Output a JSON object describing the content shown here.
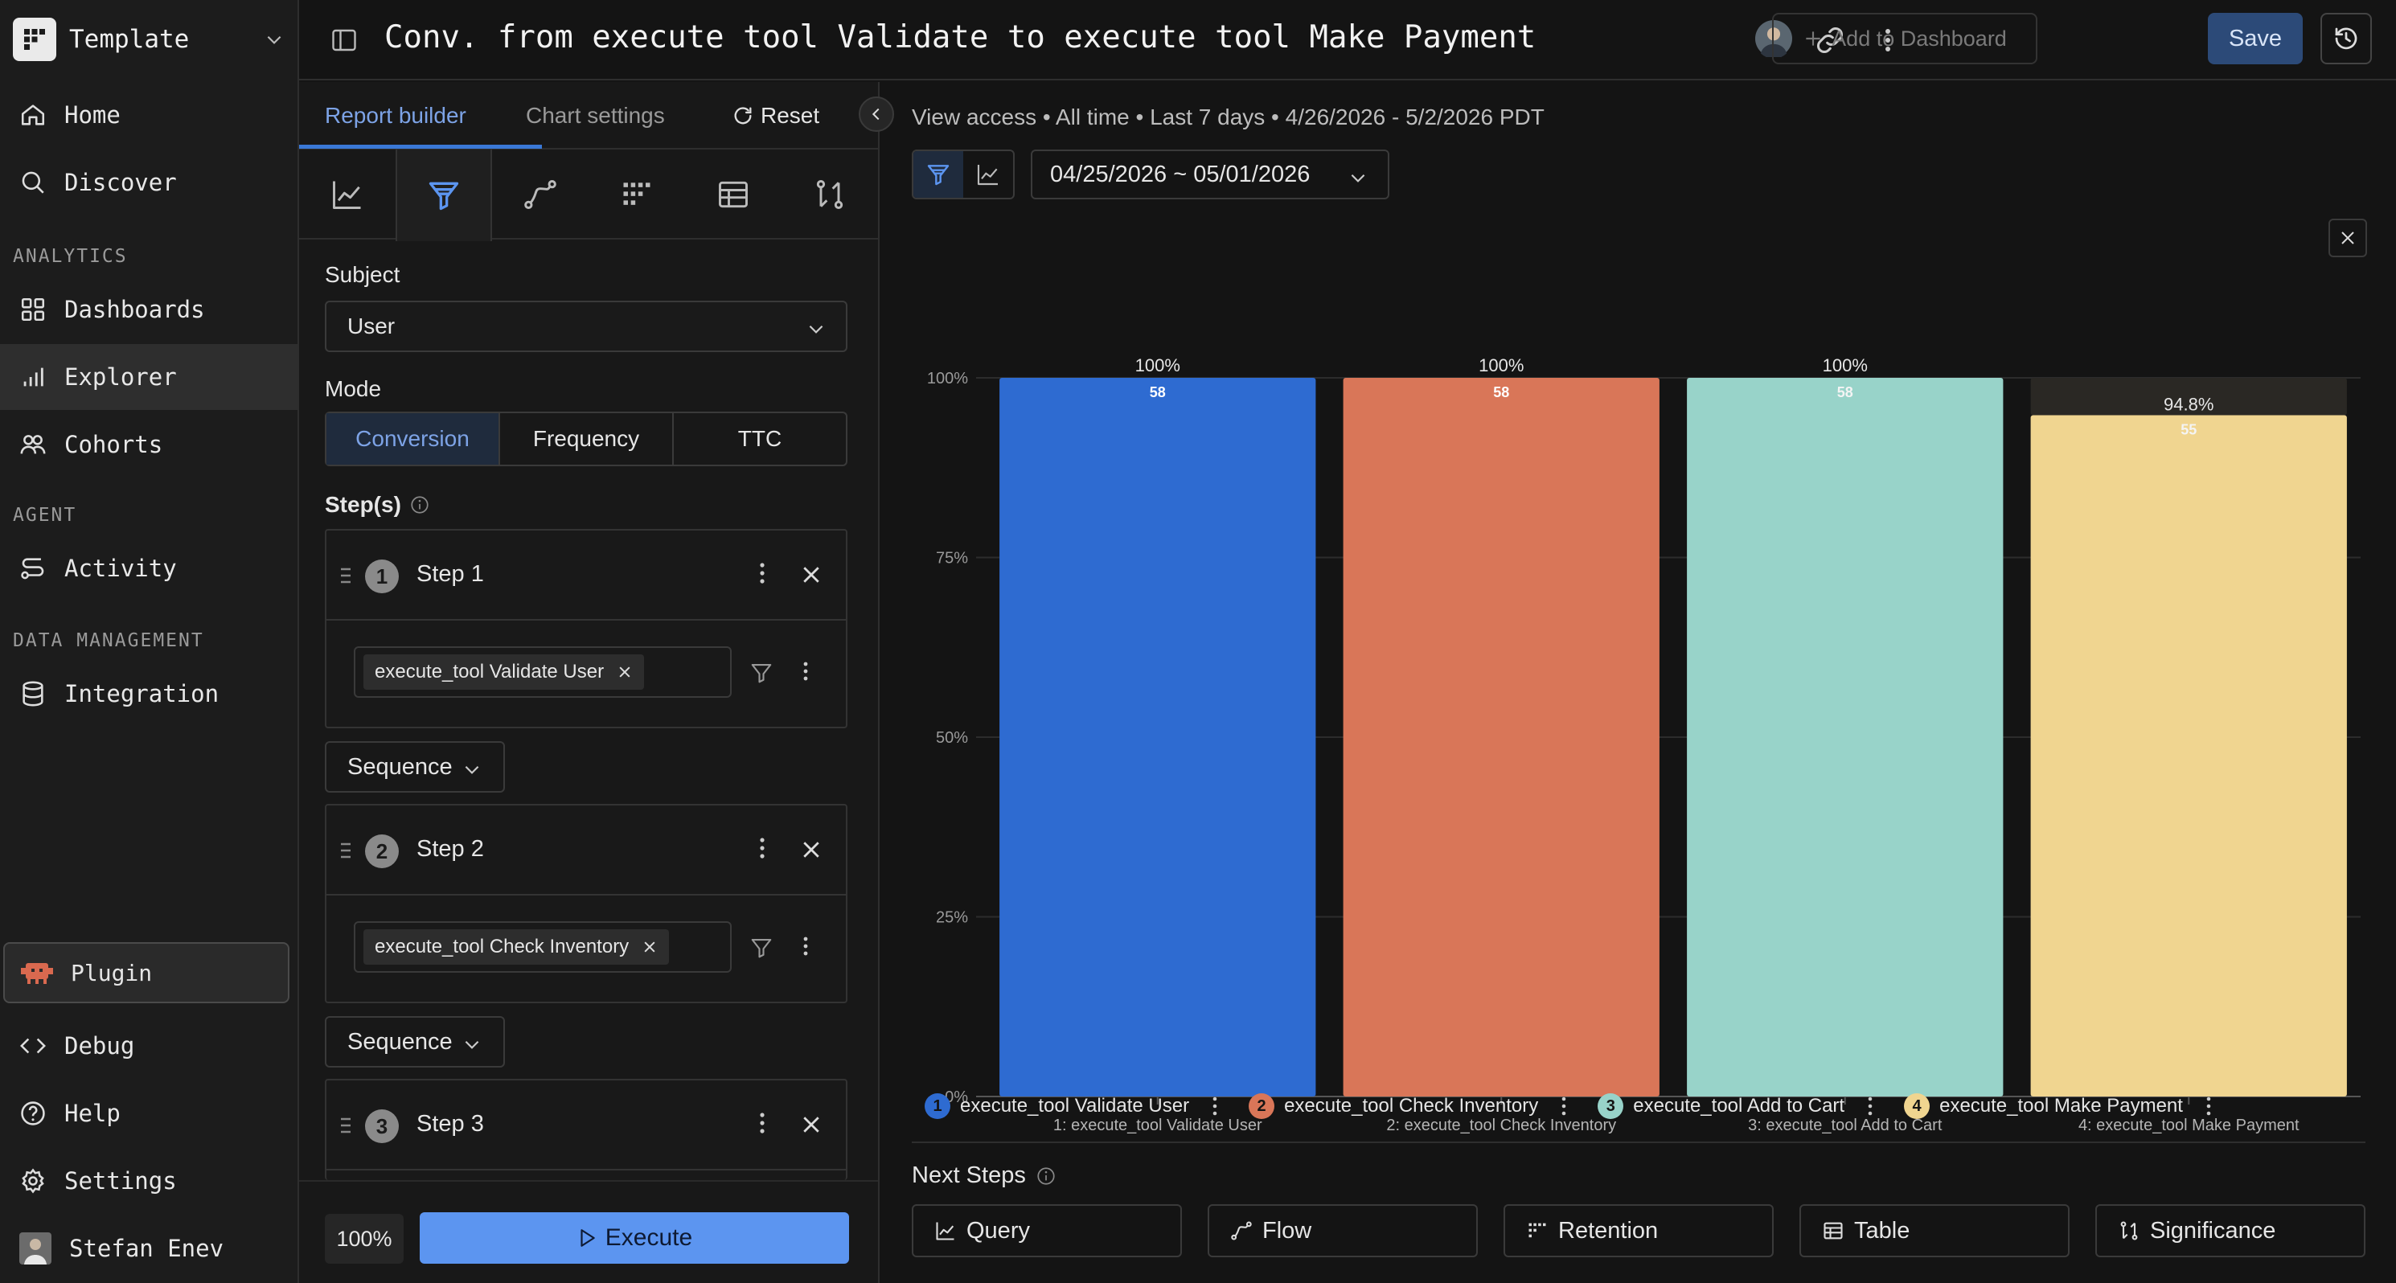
{
  "sidebar": {
    "workspace": "Template",
    "nav_top": [
      {
        "label": "Home",
        "icon": "home-icon"
      },
      {
        "label": "Discover",
        "icon": "search-icon"
      }
    ],
    "sections": [
      {
        "title": "ANALYTICS",
        "items": [
          {
            "label": "Dashboards",
            "icon": "dashboard-icon"
          },
          {
            "label": "Explorer",
            "icon": "bar-chart-icon",
            "active": true
          },
          {
            "label": "Cohorts",
            "icon": "users-icon"
          }
        ]
      },
      {
        "title": "AGENT",
        "items": [
          {
            "label": "Activity",
            "icon": "route-icon"
          }
        ]
      },
      {
        "title": "DATA MANAGEMENT",
        "items": [
          {
            "label": "Integration",
            "icon": "database-icon"
          }
        ]
      }
    ],
    "plugin": "Plugin",
    "bottom": [
      {
        "label": "Debug",
        "icon": "code-icon"
      },
      {
        "label": "Help",
        "icon": "help-icon"
      },
      {
        "label": "Settings",
        "icon": "gear-icon"
      },
      {
        "label": "Stefan Enev",
        "icon": "avatar"
      }
    ]
  },
  "header": {
    "title": "Conv. from execute tool Validate to execute tool Make Payment",
    "add_dashboard": "Add to Dashboard",
    "save": "Save"
  },
  "panel": {
    "tabs": {
      "report_builder": "Report builder",
      "chart_settings": "Chart settings",
      "reset": "Reset"
    },
    "subject_label": "Subject",
    "subject_value": "User",
    "mode_label": "Mode",
    "modes": [
      "Conversion",
      "Frequency",
      "TTC"
    ],
    "active_mode": "Conversion",
    "steps_label": "Step(s)",
    "steps": [
      {
        "num": "1",
        "name": "Step 1",
        "event": "execute_tool Validate User"
      },
      {
        "num": "2",
        "name": "Step 2",
        "event": "execute_tool Check Inventory"
      },
      {
        "num": "3",
        "name": "Step 3",
        "event": ""
      }
    ],
    "sequence_label": "Sequence",
    "zoom": "100%",
    "execute": "Execute"
  },
  "main": {
    "access_line": "View access • All time • Last 7 days • 4/26/2026 - 5/2/2026 PDT",
    "date_range": "04/25/2026 ~ 05/01/2026",
    "legend": [
      {
        "num": "1",
        "label": "execute_tool Validate User",
        "color": "#2e6bd1"
      },
      {
        "num": "2",
        "label": "execute_tool Check Inventory",
        "color": "#d97658"
      },
      {
        "num": "3",
        "label": "execute_tool Add to Cart",
        "color": "#98d3c9"
      },
      {
        "num": "4",
        "label": "execute_tool Make Payment",
        "color": "#f0d590"
      }
    ],
    "next_steps_title": "Next Steps",
    "next_steps": [
      {
        "label": "Query",
        "icon": "line-chart-icon"
      },
      {
        "label": "Flow",
        "icon": "flow-icon"
      },
      {
        "label": "Retention",
        "icon": "grid-icon"
      },
      {
        "label": "Table",
        "icon": "table-icon"
      },
      {
        "label": "Significance",
        "icon": "compare-icon"
      }
    ]
  },
  "chart_data": {
    "type": "bar",
    "categories": [
      "1: execute_tool Validate User",
      "2: execute_tool Check Inventory",
      "3: execute_tool Add to Cart",
      "4: execute_tool Make Payment"
    ],
    "values": [
      100,
      100,
      100,
      94.8
    ],
    "value_labels": [
      "100%",
      "100%",
      "100%",
      "94.8%"
    ],
    "counts": [
      58,
      58,
      58,
      55
    ],
    "colors": [
      "#2e6bd1",
      "#d97658",
      "#98d3c9",
      "#f0d590"
    ],
    "yticks": [
      "0%",
      "25%",
      "50%",
      "75%",
      "100%"
    ],
    "ylim": [
      0,
      100
    ],
    "grid": true
  }
}
